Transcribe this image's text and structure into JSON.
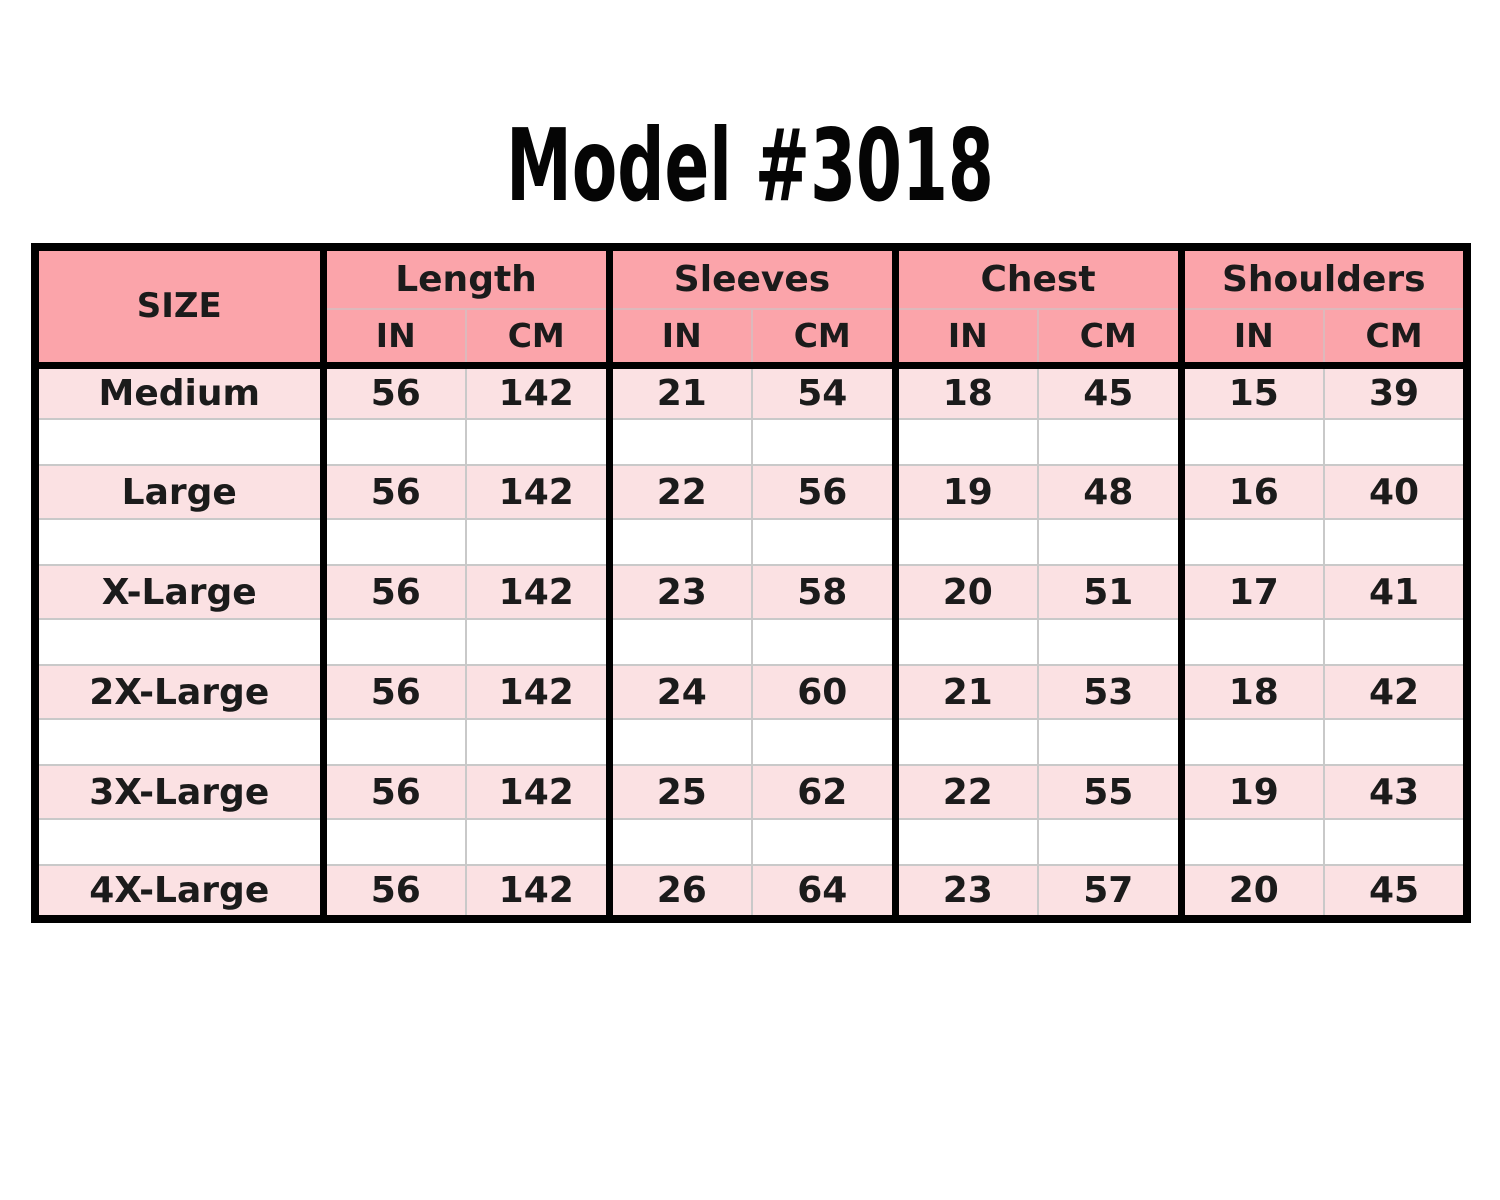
{
  "page": {
    "background": "#ffffff"
  },
  "colors": {
    "header_fill": "#fba4aa",
    "data_row_fill": "#fbe1e3",
    "spacer_row_fill": "#ffffff",
    "grid_thick": "#000000",
    "grid_thin": "#c9c9c9",
    "header_grid_thin": "#ddb9bc",
    "title_text": "#050505",
    "cell_text": "#1b1b1b"
  },
  "chart_data": {
    "type": "table",
    "title": "Model #3018",
    "size_column_header": "SIZE",
    "column_groups": [
      {
        "label": "Length",
        "units": [
          "IN",
          "CM"
        ]
      },
      {
        "label": "Sleeves",
        "units": [
          "IN",
          "CM"
        ]
      },
      {
        "label": "Chest",
        "units": [
          "IN",
          "CM"
        ]
      },
      {
        "label": "Shoulders",
        "units": [
          "IN",
          "CM"
        ]
      }
    ],
    "rows": [
      {
        "size": "Medium",
        "values": [
          "56",
          "142",
          "21",
          "54",
          "18",
          "45",
          "15",
          "39"
        ]
      },
      {
        "size": "Large",
        "values": [
          "56",
          "142",
          "22",
          "56",
          "19",
          "48",
          "16",
          "40"
        ]
      },
      {
        "size": "X-Large",
        "values": [
          "56",
          "142",
          "23",
          "58",
          "20",
          "51",
          "17",
          "41"
        ]
      },
      {
        "size": "2X-Large",
        "values": [
          "56",
          "142",
          "24",
          "60",
          "21",
          "53",
          "18",
          "42"
        ]
      },
      {
        "size": "3X-Large",
        "values": [
          "56",
          "142",
          "25",
          "62",
          "22",
          "55",
          "19",
          "43"
        ]
      },
      {
        "size": "4X-Large",
        "values": [
          "56",
          "142",
          "26",
          "64",
          "23",
          "57",
          "20",
          "45"
        ]
      }
    ]
  }
}
